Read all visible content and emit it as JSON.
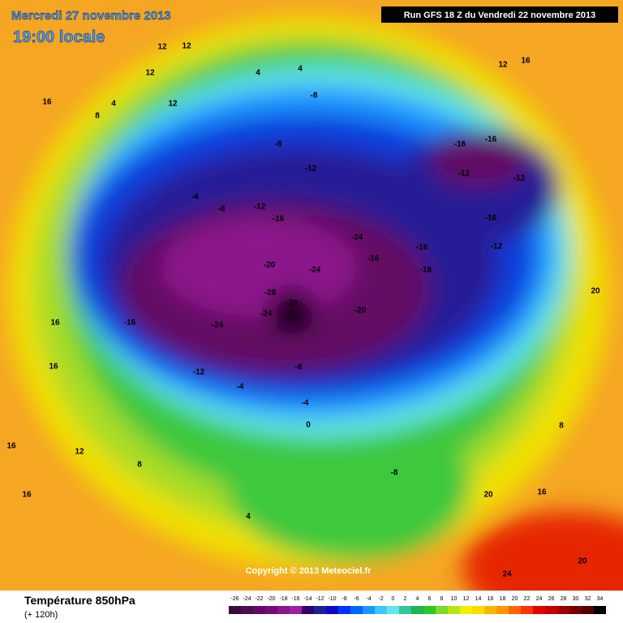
{
  "header": {
    "date": "Mercredi 27 novembre 2013",
    "time": "19:00 locale",
    "run": "Run GFS 18 Z du Vendredi 22 novembre 2013"
  },
  "map": {
    "copyright": "Copyright © 2013 Meteociel.fr",
    "labels": [
      "12",
      "12",
      "12",
      "4",
      "12",
      "4",
      "16",
      "8",
      "4",
      "-8",
      "-8",
      "-12",
      "-12",
      "-16",
      "-8",
      "-4",
      "-20",
      "-24",
      "-24",
      "-16",
      "-28",
      "-28",
      "-24",
      "-24",
      "-16",
      "-12",
      "-8",
      "-20",
      "-16",
      "-16",
      "-16",
      "-16",
      "-12",
      "-12",
      "-16",
      "-12",
      "-4",
      "-4",
      "0",
      "12",
      "8",
      "4",
      "-8",
      "20",
      "16",
      "20",
      "8",
      "16",
      "16",
      "24",
      "20",
      "16",
      "12",
      "16",
      "16"
    ]
  },
  "footer": {
    "title": "Température 850hPa",
    "lead": "(+ 120h)"
  },
  "legend": {
    "labels": [
      -26,
      -24,
      -22,
      -20,
      -18,
      -16,
      -14,
      -12,
      -10,
      -8,
      -6,
      -4,
      -2,
      0,
      2,
      4,
      6,
      8,
      10,
      12,
      14,
      16,
      18,
      20,
      22,
      24,
      26,
      28,
      30,
      32,
      34
    ],
    "colors": [
      "#3c0a3c",
      "#500a50",
      "#640a64",
      "#780a78",
      "#8c148c",
      "#a01ea0",
      "#32006e",
      "#1e1e96",
      "#0a0ac8",
      "#0032ff",
      "#0064ff",
      "#1e96ff",
      "#3cc8ff",
      "#64e6e6",
      "#32c896",
      "#1eb450",
      "#28c828",
      "#78dc28",
      "#b4e614",
      "#f0f000",
      "#ffdc00",
      "#ffb400",
      "#ff9600",
      "#ff6400",
      "#ff3200",
      "#e60000",
      "#c80000",
      "#a00000",
      "#780000",
      "#500000",
      "#000000"
    ]
  }
}
